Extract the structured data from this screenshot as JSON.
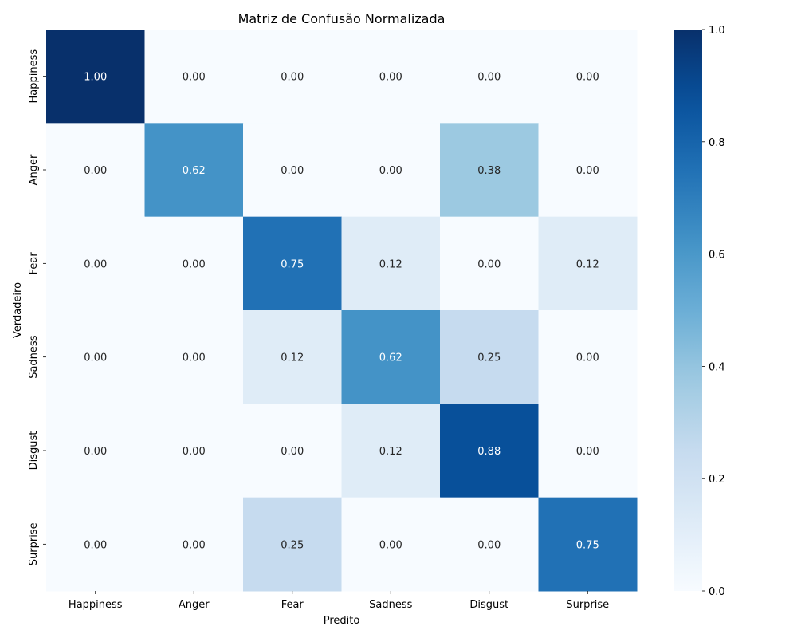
{
  "chart_data": {
    "type": "heatmap",
    "title": "Matriz de Confusão Normalizada",
    "xlabel": "Predito",
    "ylabel": "Verdadeiro",
    "x_categories": [
      "Happiness",
      "Anger",
      "Fear",
      "Sadness",
      "Disgust",
      "Surprise"
    ],
    "y_categories": [
      "Happiness",
      "Anger",
      "Fear",
      "Sadness",
      "Disgust",
      "Surprise"
    ],
    "values": [
      [
        1.0,
        0.0,
        0.0,
        0.0,
        0.0,
        0.0
      ],
      [
        0.0,
        0.62,
        0.0,
        0.0,
        0.38,
        0.0
      ],
      [
        0.0,
        0.0,
        0.75,
        0.12,
        0.0,
        0.12
      ],
      [
        0.0,
        0.0,
        0.12,
        0.62,
        0.25,
        0.0
      ],
      [
        0.0,
        0.0,
        0.0,
        0.12,
        0.88,
        0.0
      ],
      [
        0.0,
        0.0,
        0.25,
        0.0,
        0.0,
        0.75
      ]
    ],
    "annotations_format": "2 decimals",
    "colormap": "Blues",
    "colorbar": {
      "range": [
        0.0,
        1.0
      ],
      "ticks": [
        "0.0",
        "0.2",
        "0.4",
        "0.6",
        "0.8",
        "1.0"
      ]
    },
    "grid": false
  }
}
